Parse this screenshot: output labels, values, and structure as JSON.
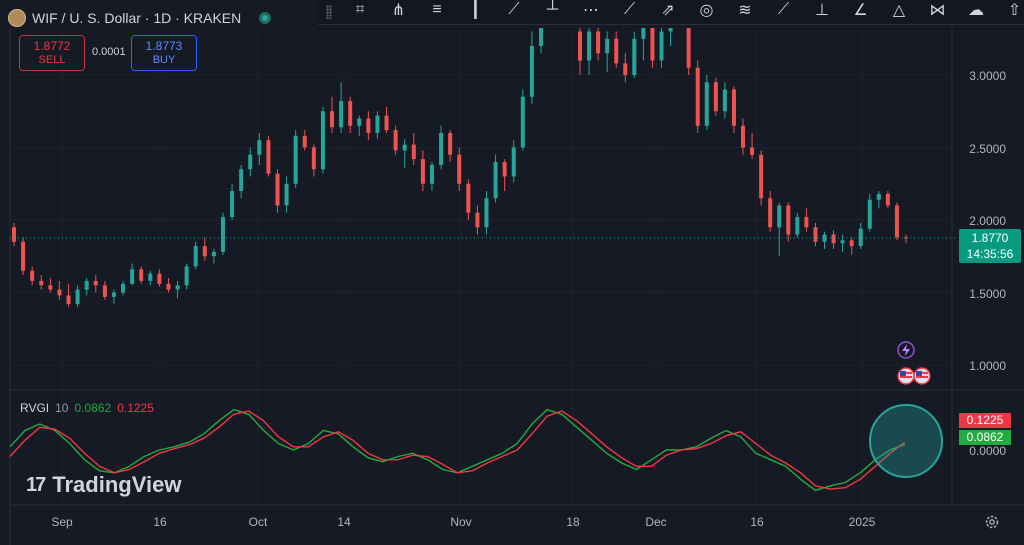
{
  "header": {
    "symbol_title": "WIF / U. S. Dollar · 1D · KRAKEN"
  },
  "trade": {
    "sell_price": "1.8772",
    "sell_label": "SELL",
    "spread": "0.0001",
    "buy_price": "1.8773",
    "buy_label": "BUY"
  },
  "price_axis": {
    "ticks": [
      "3.0000",
      "2.5000",
      "2.0000",
      "1.5000",
      "1.0000"
    ],
    "indicator_tick": "0.0000"
  },
  "time_axis": {
    "ticks": [
      "Sep",
      "16",
      "Oct",
      "14",
      "Nov",
      "18",
      "Dec",
      "16",
      "2025"
    ]
  },
  "last_price": {
    "value": "1.8770",
    "countdown": "14:35:56"
  },
  "indicator": {
    "name": "RVGI",
    "period": "10",
    "rvgi_value": "0.0862",
    "signal_value": "0.1225"
  },
  "watermark": {
    "text": "TradingView",
    "logo": "17"
  },
  "colors": {
    "up": "#26a69a",
    "down": "#ef5350",
    "background": "#161a25",
    "rvgi": "#22ab3f",
    "signal": "#f23645"
  },
  "toolbar_icons": [
    "crosshair-grid-icon",
    "pitchfork-icon",
    "fib-retracement-icon",
    "candle-icon",
    "trend-line-icon",
    "vertical-line-icon",
    "date-range-icon",
    "ray-icon",
    "arrow-path-icon",
    "circle-target-icon",
    "regression-icon",
    "arrow-line-icon",
    "horizontal-ray-icon",
    "angle-icon",
    "triangle-pattern-icon",
    "xabcd-icon",
    "cloud-icon",
    "arrow-up-icon"
  ],
  "chart_data": {
    "type": "candlestick",
    "symbol": "WIF / U. S. Dollar",
    "interval": "1D",
    "exchange": "KRAKEN",
    "y_range": [
      0.85,
      3.4
    ],
    "candles": [
      [
        1.95,
        1.98,
        1.82,
        1.85
      ],
      [
        1.85,
        1.88,
        1.62,
        1.65
      ],
      [
        1.65,
        1.68,
        1.55,
        1.58
      ],
      [
        1.58,
        1.62,
        1.52,
        1.55
      ],
      [
        1.55,
        1.6,
        1.5,
        1.52
      ],
      [
        1.52,
        1.58,
        1.45,
        1.48
      ],
      [
        1.48,
        1.56,
        1.4,
        1.42
      ],
      [
        1.42,
        1.55,
        1.4,
        1.52
      ],
      [
        1.52,
        1.6,
        1.48,
        1.58
      ],
      [
        1.58,
        1.62,
        1.5,
        1.55
      ],
      [
        1.55,
        1.58,
        1.45,
        1.47
      ],
      [
        1.47,
        1.52,
        1.42,
        1.5
      ],
      [
        1.5,
        1.58,
        1.48,
        1.56
      ],
      [
        1.56,
        1.7,
        1.55,
        1.66
      ],
      [
        1.66,
        1.68,
        1.56,
        1.58
      ],
      [
        1.58,
        1.65,
        1.55,
        1.63
      ],
      [
        1.63,
        1.66,
        1.54,
        1.56
      ],
      [
        1.56,
        1.6,
        1.5,
        1.52
      ],
      [
        1.52,
        1.58,
        1.46,
        1.55
      ],
      [
        1.55,
        1.7,
        1.52,
        1.68
      ],
      [
        1.68,
        1.85,
        1.66,
        1.82
      ],
      [
        1.82,
        1.88,
        1.72,
        1.75
      ],
      [
        1.75,
        1.8,
        1.7,
        1.78
      ],
      [
        1.78,
        2.05,
        1.76,
        2.02
      ],
      [
        2.02,
        2.25,
        2.0,
        2.2
      ],
      [
        2.2,
        2.38,
        2.15,
        2.35
      ],
      [
        2.35,
        2.5,
        2.3,
        2.45
      ],
      [
        2.45,
        2.6,
        2.38,
        2.55
      ],
      [
        2.55,
        2.58,
        2.3,
        2.32
      ],
      [
        2.32,
        2.35,
        2.05,
        2.1
      ],
      [
        2.1,
        2.3,
        2.05,
        2.25
      ],
      [
        2.25,
        2.62,
        2.22,
        2.58
      ],
      [
        2.58,
        2.62,
        2.48,
        2.5
      ],
      [
        2.5,
        2.52,
        2.3,
        2.35
      ],
      [
        2.35,
        2.78,
        2.32,
        2.75
      ],
      [
        2.75,
        2.85,
        2.6,
        2.64
      ],
      [
        2.64,
        2.95,
        2.6,
        2.82
      ],
      [
        2.82,
        2.85,
        2.6,
        2.65
      ],
      [
        2.65,
        2.72,
        2.58,
        2.7
      ],
      [
        2.7,
        2.75,
        2.55,
        2.6
      ],
      [
        2.6,
        2.75,
        2.56,
        2.72
      ],
      [
        2.72,
        2.78,
        2.6,
        2.62
      ],
      [
        2.62,
        2.65,
        2.45,
        2.48
      ],
      [
        2.48,
        2.56,
        2.36,
        2.52
      ],
      [
        2.52,
        2.6,
        2.38,
        2.42
      ],
      [
        2.42,
        2.48,
        2.2,
        2.25
      ],
      [
        2.25,
        2.4,
        2.2,
        2.38
      ],
      [
        2.38,
        2.65,
        2.35,
        2.6
      ],
      [
        2.6,
        2.62,
        2.4,
        2.45
      ],
      [
        2.45,
        2.5,
        2.2,
        2.25
      ],
      [
        2.25,
        2.28,
        2.0,
        2.05
      ],
      [
        2.05,
        2.1,
        1.9,
        1.95
      ],
      [
        1.95,
        2.2,
        1.9,
        2.15
      ],
      [
        2.15,
        2.45,
        2.12,
        2.4
      ],
      [
        2.4,
        2.42,
        2.2,
        2.3
      ],
      [
        2.3,
        2.55,
        2.26,
        2.5
      ],
      [
        2.5,
        2.9,
        2.48,
        2.85
      ],
      [
        2.85,
        3.3,
        2.8,
        3.2
      ],
      [
        3.2,
        3.6,
        3.15,
        3.55
      ],
      [
        3.3,
        3.5,
        3.0,
        3.1
      ],
      [
        3.1,
        3.35,
        3.0,
        3.3
      ],
      [
        3.3,
        3.4,
        3.1,
        3.15
      ],
      [
        3.15,
        3.3,
        3.02,
        3.25
      ],
      [
        3.25,
        3.3,
        3.05,
        3.08
      ],
      [
        3.08,
        3.15,
        2.95,
        3.0
      ],
      [
        3.0,
        3.3,
        2.98,
        3.25
      ],
      [
        3.25,
        3.5,
        3.1,
        3.4
      ],
      [
        3.4,
        3.42,
        3.05,
        3.1
      ],
      [
        3.1,
        3.35,
        3.05,
        3.3
      ],
      [
        3.3,
        3.45,
        3.2,
        3.42
      ],
      [
        3.42,
        3.5,
        3.35,
        3.38
      ],
      [
        3.38,
        3.4,
        3.0,
        3.05
      ],
      [
        3.05,
        3.1,
        2.6,
        2.65
      ],
      [
        2.65,
        3.0,
        2.62,
        2.95
      ],
      [
        2.95,
        2.98,
        2.72,
        2.75
      ],
      [
        2.75,
        2.95,
        2.7,
        2.9
      ],
      [
        2.9,
        2.92,
        2.6,
        2.65
      ],
      [
        2.65,
        2.7,
        2.45,
        2.5
      ],
      [
        2.5,
        2.6,
        2.42,
        2.45
      ],
      [
        2.45,
        2.48,
        2.1,
        2.15
      ],
      [
        2.15,
        2.2,
        1.92,
        1.95
      ],
      [
        1.95,
        2.12,
        1.75,
        2.1
      ],
      [
        2.1,
        2.12,
        1.85,
        1.9
      ],
      [
        1.9,
        2.05,
        1.88,
        2.02
      ],
      [
        2.02,
        2.08,
        1.92,
        1.95
      ],
      [
        1.95,
        1.98,
        1.82,
        1.85
      ],
      [
        1.85,
        1.92,
        1.8,
        1.9
      ],
      [
        1.9,
        1.93,
        1.8,
        1.84
      ],
      [
        1.84,
        1.9,
        1.78,
        1.86
      ],
      [
        1.86,
        1.88,
        1.76,
        1.82
      ],
      [
        1.82,
        1.98,
        1.8,
        1.94
      ],
      [
        1.94,
        2.18,
        1.92,
        2.14
      ],
      [
        2.14,
        2.2,
        2.08,
        2.18
      ],
      [
        2.18,
        2.2,
        2.08,
        2.1
      ],
      [
        2.1,
        2.12,
        1.86,
        1.88
      ],
      [
        1.88,
        1.9,
        1.84,
        1.877
      ]
    ],
    "indicator": {
      "name": "RVGI",
      "period": 10,
      "series": [
        {
          "name": "RVGI",
          "values": [
            0.05,
            0.3,
            0.4,
            0.3,
            0.1,
            -0.15,
            -0.32,
            -0.35,
            -0.25,
            -0.1,
            0.0,
            0.05,
            0.12,
            0.25,
            0.45,
            0.62,
            0.55,
            0.3,
            0.1,
            0.0,
            0.1,
            0.3,
            0.25,
            0.05,
            -0.12,
            -0.18,
            -0.1,
            -0.05,
            -0.15,
            -0.3,
            -0.35,
            -0.25,
            -0.15,
            -0.05,
            0.1,
            0.4,
            0.62,
            0.55,
            0.35,
            0.15,
            -0.05,
            -0.2,
            -0.3,
            -0.15,
            0.0,
            0.0,
            0.05,
            0.18,
            0.3,
            0.2,
            -0.05,
            -0.15,
            -0.25,
            -0.45,
            -0.62,
            -0.55,
            -0.5,
            -0.35,
            -0.15,
            0.0,
            0.0862
          ]
        },
        {
          "name": "Signal",
          "values": [
            -0.1,
            0.15,
            0.35,
            0.32,
            0.18,
            -0.05,
            -0.25,
            -0.35,
            -0.3,
            -0.18,
            -0.05,
            0.02,
            0.08,
            0.18,
            0.35,
            0.55,
            0.6,
            0.45,
            0.2,
            0.05,
            0.05,
            0.2,
            0.28,
            0.15,
            -0.05,
            -0.15,
            -0.15,
            -0.08,
            -0.1,
            -0.22,
            -0.35,
            -0.32,
            -0.2,
            -0.1,
            0.0,
            0.25,
            0.52,
            0.6,
            0.45,
            0.25,
            0.05,
            -0.12,
            -0.25,
            -0.25,
            -0.08,
            0.0,
            0.02,
            0.1,
            0.22,
            0.28,
            0.1,
            -0.08,
            -0.2,
            -0.35,
            -0.55,
            -0.6,
            -0.58,
            -0.45,
            -0.25,
            -0.05,
            0.1225
          ]
        }
      ]
    }
  }
}
